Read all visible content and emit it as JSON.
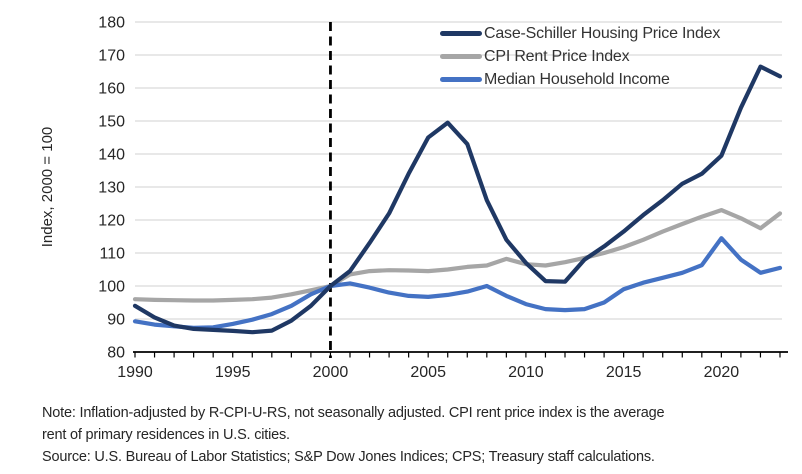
{
  "chart_data": {
    "type": "line",
    "title": "",
    "ylabel": "Index, 2000 = 100",
    "xlabel": "",
    "xlim": [
      1990,
      2023
    ],
    "ylim": [
      80,
      180
    ],
    "grid": true,
    "legend_position": "top-right-inside",
    "vline": {
      "x": 2000,
      "style": "dashed",
      "color": "#000000"
    },
    "y_ticks": [
      80,
      90,
      100,
      110,
      120,
      130,
      140,
      150,
      160,
      170,
      180
    ],
    "x_label_ticks": [
      1990,
      1995,
      2000,
      2005,
      2010,
      2015,
      2020
    ],
    "x": [
      1990,
      1991,
      1992,
      1993,
      1994,
      1995,
      1996,
      1997,
      1998,
      1999,
      2000,
      2001,
      2002,
      2003,
      2004,
      2005,
      2006,
      2007,
      2008,
      2009,
      2010,
      2011,
      2012,
      2013,
      2014,
      2015,
      2016,
      2017,
      2018,
      2019,
      2020,
      2021,
      2022,
      2023
    ],
    "series": [
      {
        "name": "Case-Schiller Housing Price Index",
        "color": "#1F3864",
        "values": [
          94,
          90.5,
          88,
          87,
          86.7,
          86.4,
          86,
          86.5,
          89.5,
          94,
          100,
          104.5,
          113,
          122,
          134,
          145,
          149.5,
          143,
          126,
          114,
          107,
          101.5,
          101.3,
          108,
          112,
          116.5,
          121.5,
          126,
          131,
          134,
          139.5,
          154,
          166.5,
          163.5
        ]
      },
      {
        "name": "CPI Rent Price Index",
        "color": "#A6A6A6",
        "values": [
          96,
          95.8,
          95.7,
          95.6,
          95.6,
          95.8,
          96,
          96.5,
          97.5,
          98.7,
          100,
          103.5,
          104.5,
          104.8,
          104.7,
          104.5,
          105,
          105.8,
          106.2,
          108.2,
          106.6,
          106.2,
          107.2,
          108.5,
          110,
          111.8,
          114,
          116.5,
          118.8,
          121,
          123,
          120.5,
          117.5,
          122
        ]
      },
      {
        "name": "Median Household Income",
        "color": "#4472C4",
        "values": [
          89.3,
          88.3,
          87.8,
          87.3,
          87.5,
          88.5,
          89.8,
          91.5,
          94,
          97.5,
          100,
          100.8,
          99.5,
          98,
          97,
          96.7,
          97.3,
          98.3,
          100,
          97,
          94.5,
          93,
          92.7,
          93,
          95,
          99,
          101,
          102.5,
          104,
          106.3,
          114.5,
          108,
          104,
          105.5
        ]
      }
    ]
  },
  "colors": {
    "grid": "#D9D9D9",
    "axis": "#000000",
    "tick_text": "#262626"
  },
  "notes": {
    "note_lines": [
      "Note: Inflation-adjusted by R-CPI-U-RS, not seasonally adjusted. CPI rent price index is the average",
      "rent of primary residences in U.S. cities."
    ],
    "source": "Source: U.S. Bureau of Labor Statistics; S&P Dow Jones Indices; CPS; Treasury staff calculations."
  }
}
